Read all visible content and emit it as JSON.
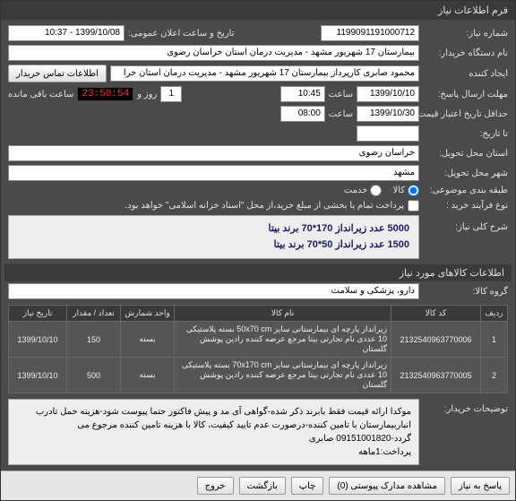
{
  "window": {
    "title": "فرم اطلاعات نیاز"
  },
  "header": {
    "need_no_label": "شماره نیاز:",
    "need_no": "1199091191000712",
    "announce_label": "تاریخ و ساعت اعلان عمومی:",
    "announce": "1399/10/08 - 10:37"
  },
  "buyer": {
    "org_label": "نام دستگاه خریدار:",
    "org": "بیمارستان 17 شهریور مشهد - مدیریت درمان استان خراسان رضوی",
    "creator_label": "ایجاد کننده",
    "creator": "محمود صابری کارپرداز بیمارستان 17 شهریور مشهد - مدیریت درمان استان خرا",
    "contact_btn": "اطلاعات تماس خریدار"
  },
  "deadlines": {
    "reply_label": "مهلت ارسال پاسخ:",
    "reply_date": "1399/10/10",
    "time_label": "ساعت",
    "reply_time": "10:45",
    "days": "1",
    "day_label": "روز و",
    "countdown": "23:50:54",
    "remain_label": "ساعت باقی مانده",
    "valid_label": "حداقل تاریخ اعتبار قیمت:",
    "valid_date": "1399/10/30",
    "valid_time": "08:00",
    "dist_label": "تا تاریخ:"
  },
  "delivery": {
    "province_label": "استان محل تحویل:",
    "province": "خراسان رضوی",
    "city_label": "شهر محل تحویل:",
    "city": "مشهد"
  },
  "classification": {
    "group_label": "طبقه بندی موضوعی:",
    "goods_radio": "کالا",
    "service_radio": "خدمت",
    "process_label": "نوع فرآیند خرید :",
    "note": "پرداخت تمام یا بخشی از مبلغ خرید،از محل \"اسناد خزانه اسلامی\" خواهد بود."
  },
  "summary": {
    "label": "شرح کلی نیاز:",
    "line1": "5000 عدد زیرانداز 170*70 برند بیتا",
    "line2": "1500 عدد زیرانداز 50*70 برند بیتا"
  },
  "goods_section": {
    "title": "اطلاعات کالاهای مورد نیاز",
    "group_label": "گروه کالا:",
    "group": "دارو، پزشکی و سلامت"
  },
  "table": {
    "headers": {
      "row": "ردیف",
      "code": "کد کالا",
      "name": "نام کالا",
      "unit": "واحد شمارش",
      "qty": "تعداد / مقدار",
      "date": "تاریخ نیاز"
    },
    "rows": [
      {
        "idx": "1",
        "code": "2132540963770006",
        "name": "زیرانداز پارچه ای بیمارستانی سایز 50x70 cm بسته پلاستیکی 10 عددی نام تجارتی بیتا مرجع عرضه کننده رادین پوشش گلستان",
        "unit": "بسته",
        "qty": "150",
        "date": "1399/10/10"
      },
      {
        "idx": "2",
        "code": "2132540963770005",
        "name": "زیرانداز پارچه ای بیمارستانی سایز 70x170 cm بسته پلاستیکی 10 عددی نام تجارتی بیتا مرجع عرضه کننده رادین پوشش گلستان",
        "unit": "بسته",
        "qty": "500",
        "date": "1399/10/10"
      }
    ]
  },
  "explain": {
    "label": "توضیحات خریدار:",
    "text": "موکدا ارائه قیمت فقط بابرند ذکر شده-گواهی آی مد و پیش فاکتور حتما پیوست شود-هزینه حمل تادرب انباربیمارستان با تامین کننده-درصورت عدم تایید کیفیت، کالا با هزینه تامین کننده مرجوع می گردد-09151001820 صابری\nپرداخت:1ماهه"
  },
  "footer": {
    "reply": "پاسخ به نیاز",
    "attach": "مشاهده مدارک پیوستی (0)",
    "print": "چاپ",
    "close": "بازگشت",
    "exit": "خروج"
  }
}
